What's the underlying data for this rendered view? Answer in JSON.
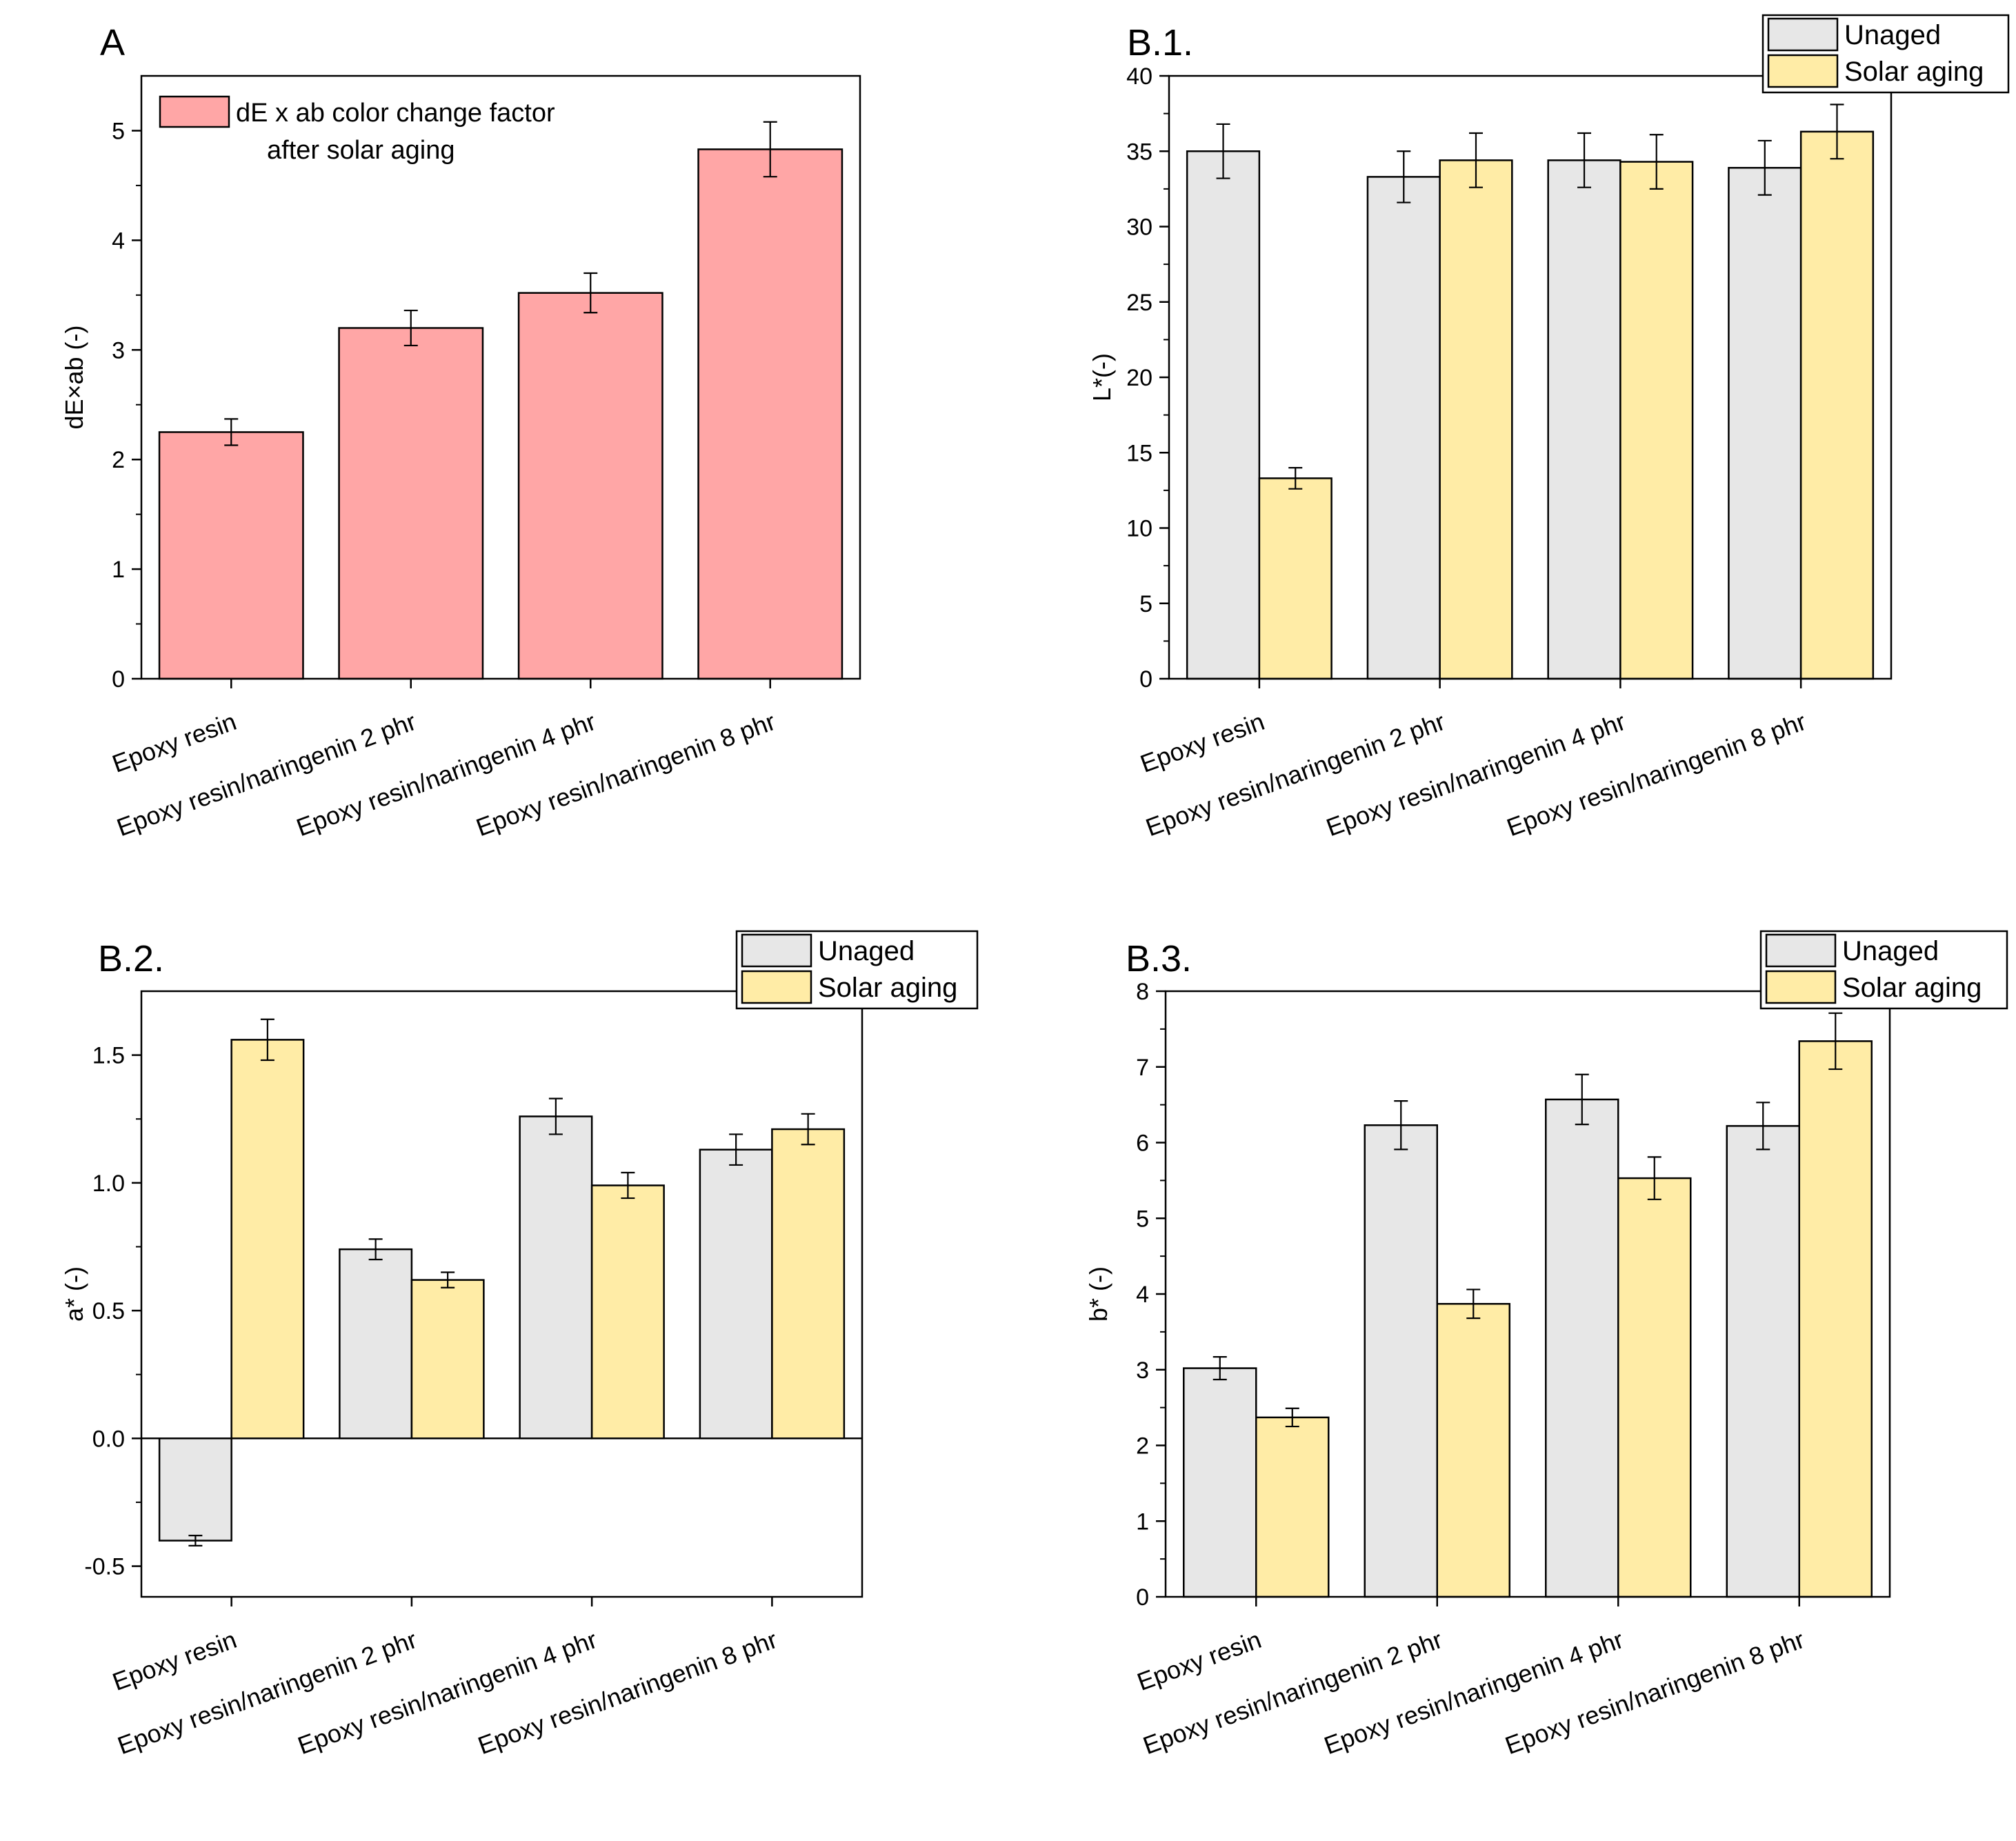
{
  "colors": {
    "dE": "#FFA6A6",
    "unaged": "#E7E7E7",
    "solar": "#FFECA6",
    "axis": "#000000"
  },
  "chart_data": [
    {
      "id": "A",
      "panel_label": "A",
      "type": "bar",
      "ylabel": "dE×ab (-)",
      "xlabel": "",
      "categories": [
        "Epoxy resin",
        "Epoxy resin/naringenin 2 phr",
        "Epoxy resin/naringenin 4 phr",
        "Epoxy resin/naringenin 8 phr"
      ],
      "ylim": [
        0,
        5.5
      ],
      "yticks": [
        0,
        1,
        2,
        3,
        4,
        5
      ],
      "ytick_labels": [
        "0",
        "1",
        "2",
        "3",
        "4",
        "5"
      ],
      "legend_position": "top-left-inside",
      "series": [
        {
          "name": "dE x ab color change factor\nafter solar aging",
          "legend_lines": [
            "dE x ab color change factor",
            "after solar aging"
          ],
          "color_key": "dE",
          "values": [
            2.25,
            3.2,
            3.52,
            4.83
          ],
          "errors": [
            0.12,
            0.16,
            0.18,
            0.25
          ]
        }
      ]
    },
    {
      "id": "B1",
      "panel_label": "B.1.",
      "type": "bar",
      "ylabel": "L*(-)",
      "xlabel": "",
      "categories": [
        "Epoxy resin",
        "Epoxy resin/naringenin 2 phr",
        "Epoxy resin/naringenin 4 phr",
        "Epoxy resin/naringenin 8 phr"
      ],
      "ylim": [
        0,
        40
      ],
      "yticks": [
        0,
        5,
        10,
        15,
        20,
        25,
        30,
        35,
        40
      ],
      "ytick_labels": [
        "0",
        "5",
        "10",
        "15",
        "20",
        "25",
        "30",
        "35",
        "40"
      ],
      "legend_position": "top-right-outside",
      "series": [
        {
          "name": "Unaged",
          "color_key": "unaged",
          "values": [
            35.0,
            33.3,
            34.4,
            33.9
          ],
          "errors": [
            1.8,
            1.7,
            1.8,
            1.8
          ]
        },
        {
          "name": "Solar aging",
          "color_key": "solar",
          "values": [
            13.3,
            34.4,
            34.3,
            36.3
          ],
          "errors": [
            0.7,
            1.8,
            1.8,
            1.8
          ]
        }
      ]
    },
    {
      "id": "B2",
      "panel_label": "B.2.",
      "type": "bar",
      "ylabel": "a* (-)",
      "xlabel": "",
      "categories": [
        "Epoxy resin",
        "Epoxy resin/naringenin 2 phr",
        "Epoxy resin/naringenin 4 phr",
        "Epoxy resin/naringenin 8 phr"
      ],
      "ylim": [
        -0.62,
        1.75
      ],
      "yticks": [
        -0.5,
        0.0,
        0.5,
        1.0,
        1.5
      ],
      "ytick_labels": [
        "-0.5",
        "0.0",
        "0.5",
        "1.0",
        "1.5"
      ],
      "zero_line": true,
      "legend_position": "top-right-outside",
      "series": [
        {
          "name": "Unaged",
          "color_key": "unaged",
          "values": [
            -0.4,
            0.74,
            1.26,
            1.13
          ],
          "errors": [
            0.02,
            0.04,
            0.07,
            0.06
          ]
        },
        {
          "name": "Solar aging",
          "color_key": "solar",
          "values": [
            1.56,
            0.62,
            0.99,
            1.21
          ],
          "errors": [
            0.08,
            0.03,
            0.05,
            0.06
          ]
        }
      ]
    },
    {
      "id": "B3",
      "panel_label": "B.3.",
      "type": "bar",
      "ylabel": "b* (-)",
      "xlabel": "",
      "categories": [
        "Epoxy resin",
        "Epoxy resin/naringenin 2 phr",
        "Epoxy resin/naringenin 4 phr",
        "Epoxy resin/naringenin 8 phr"
      ],
      "ylim": [
        0,
        8
      ],
      "yticks": [
        0,
        1,
        2,
        3,
        4,
        5,
        6,
        7,
        8
      ],
      "ytick_labels": [
        "0",
        "1",
        "2",
        "3",
        "4",
        "5",
        "6",
        "7",
        "8"
      ],
      "legend_position": "top-right-outside",
      "series": [
        {
          "name": "Unaged",
          "color_key": "unaged",
          "values": [
            3.02,
            6.23,
            6.57,
            6.22
          ],
          "errors": [
            0.15,
            0.32,
            0.33,
            0.31
          ]
        },
        {
          "name": "Solar aging",
          "color_key": "solar",
          "values": [
            2.37,
            3.87,
            5.53,
            7.34
          ],
          "errors": [
            0.12,
            0.19,
            0.28,
            0.37
          ]
        }
      ]
    }
  ]
}
